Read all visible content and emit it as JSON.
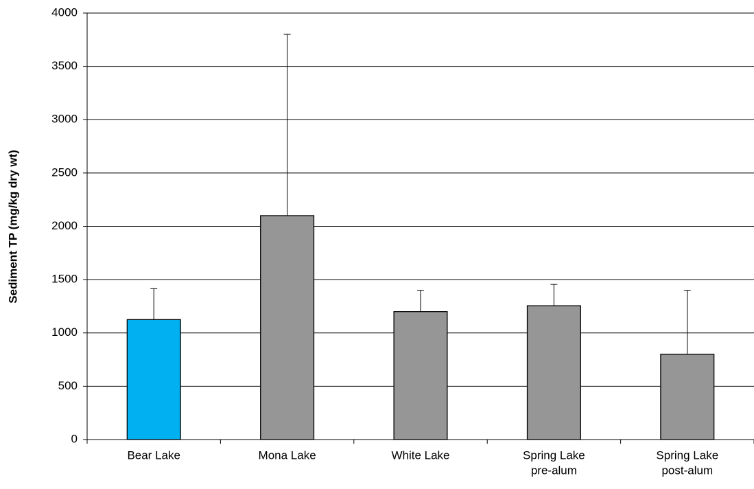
{
  "chart_data": {
    "type": "bar",
    "y_label": "Sediment TP (mg/kg dry wt)",
    "categories": [
      [
        "Bear Lake"
      ],
      [
        "Mona Lake"
      ],
      [
        "White Lake"
      ],
      [
        "Spring Lake",
        "pre-alum"
      ],
      [
        "Spring Lake",
        "post-alum"
      ]
    ],
    "values": [
      1125,
      2100,
      1200,
      1255,
      800
    ],
    "errors": [
      290,
      1700,
      200,
      200,
      600
    ],
    "colors": [
      "#00b0f0",
      "#969696",
      "#969696",
      "#969696",
      "#969696"
    ],
    "ylim": [
      0,
      4000
    ],
    "yticks": [
      0,
      500,
      1000,
      1500,
      2000,
      2500,
      3000,
      3500,
      4000
    ],
    "grid": true
  }
}
